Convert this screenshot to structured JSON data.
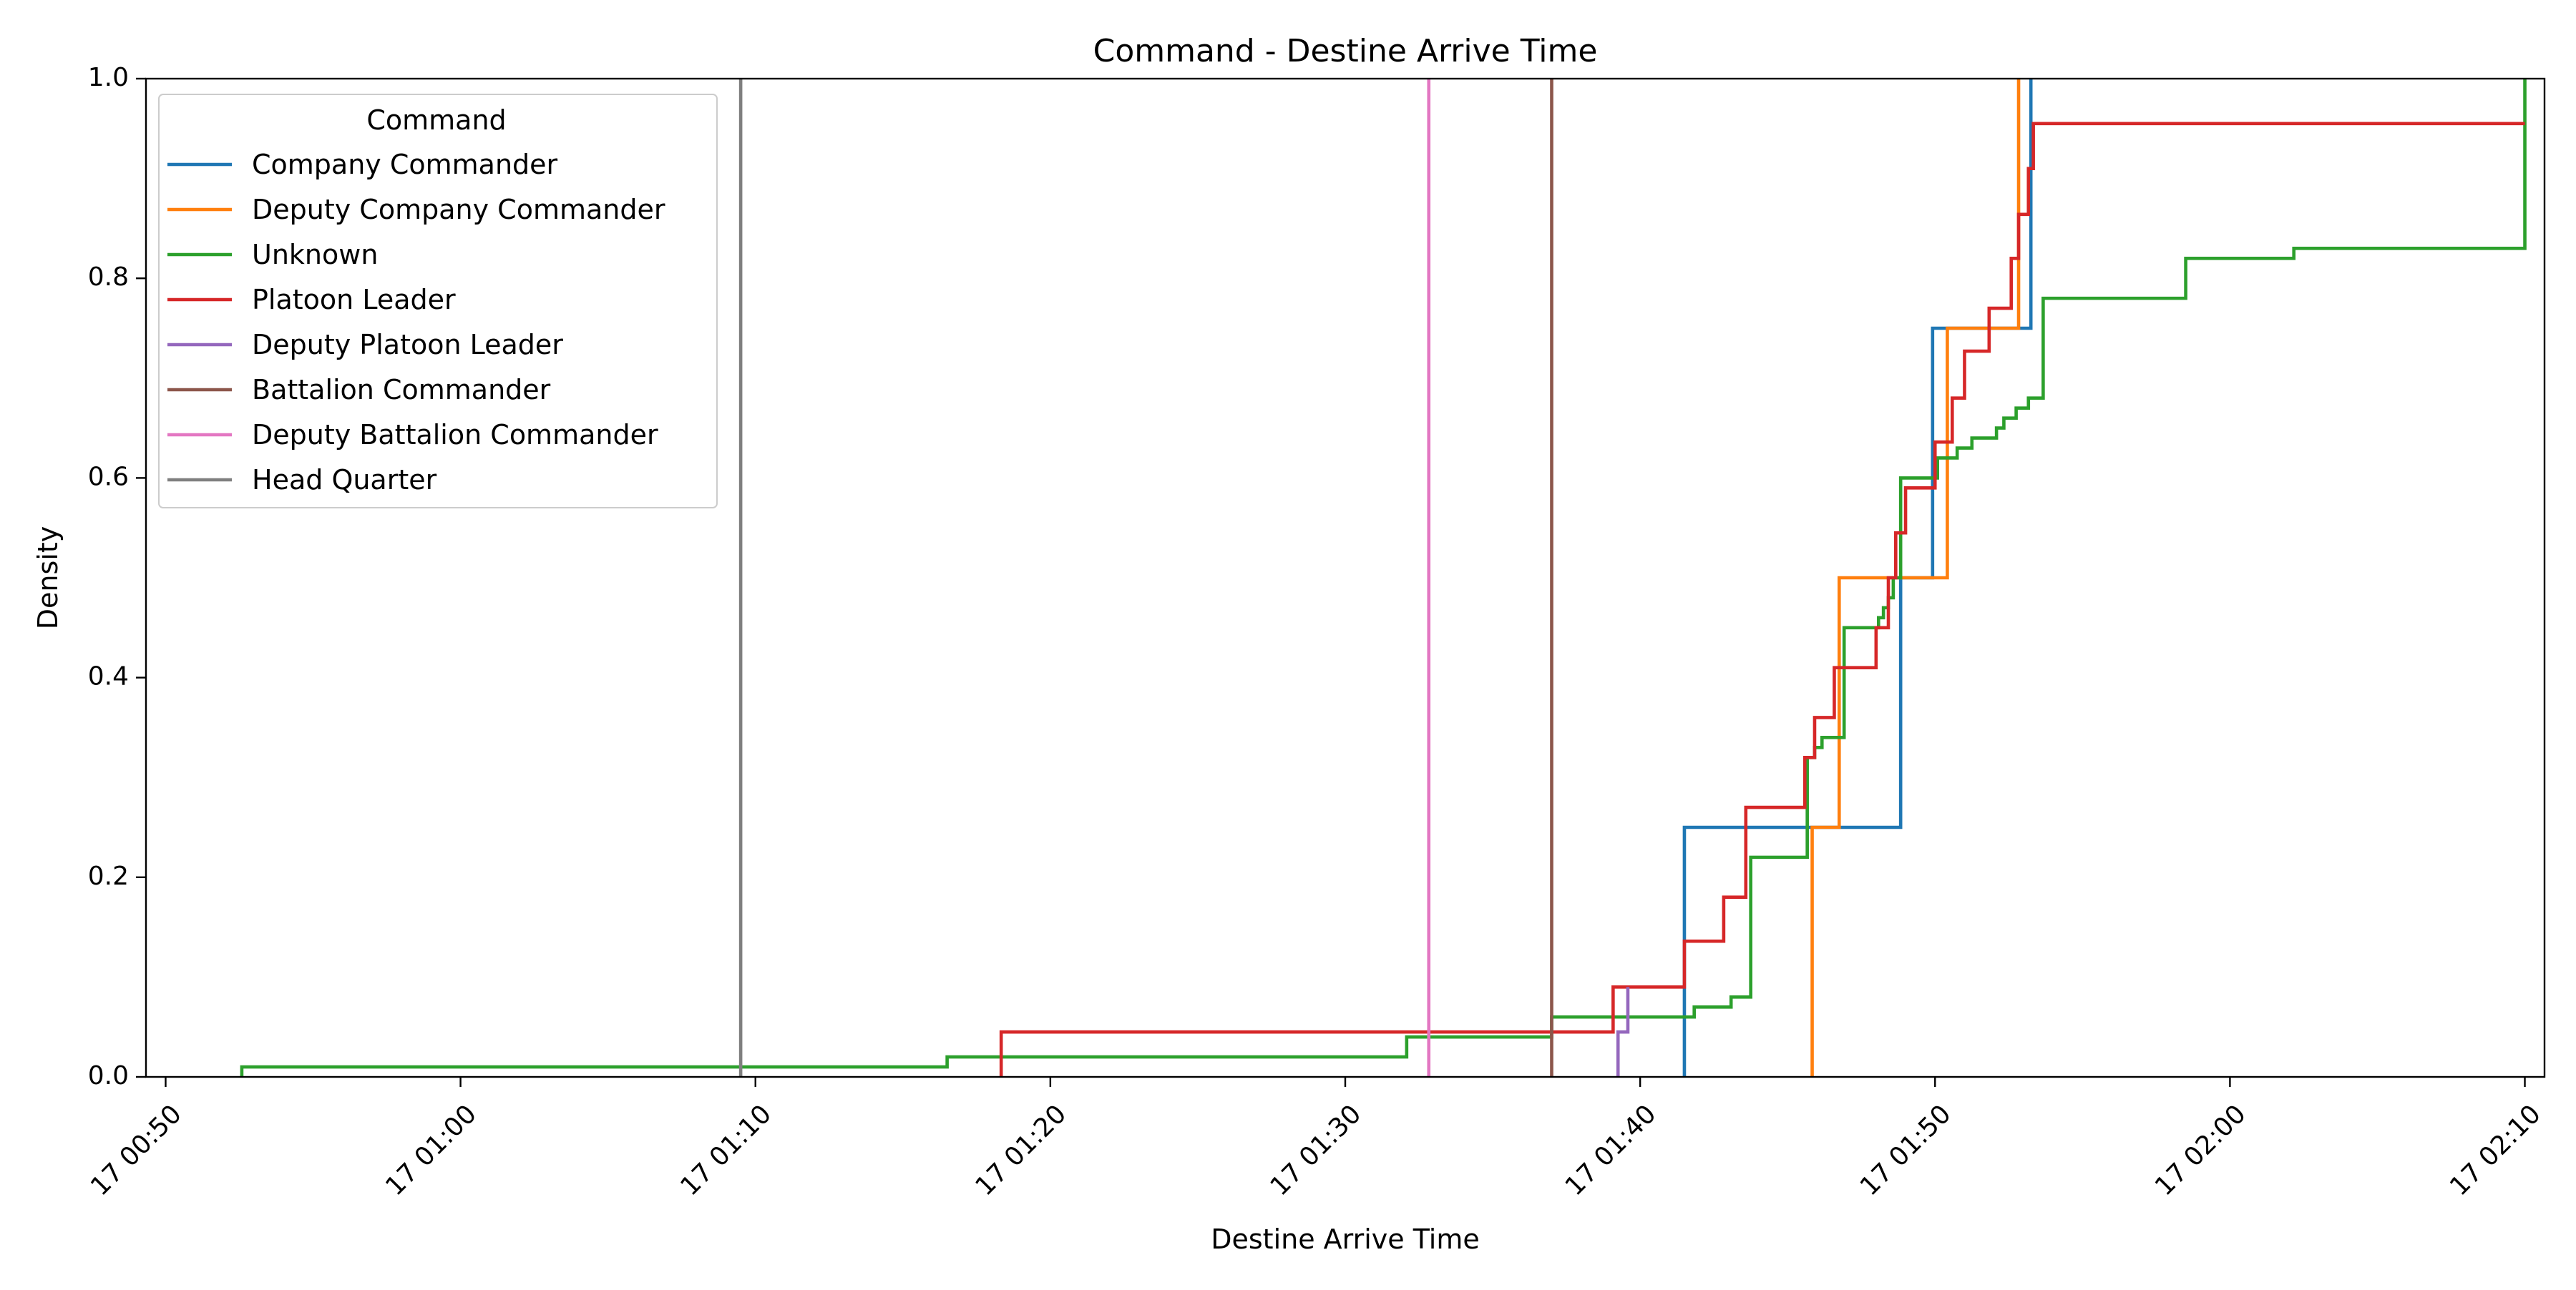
{
  "chart_data": {
    "type": "line",
    "subtype": "ecdf-step",
    "title": "Command - Destine Arrive Time",
    "xlabel": "Destine Arrive Time",
    "ylabel": "Density",
    "x_domain": [
      "2000-01-17 00:49:20",
      "2000-01-17 02:10:40"
    ],
    "ylim": [
      0,
      1.0
    ],
    "x_ticks": [
      {
        "t": "2000-01-17 00:50:00",
        "label": "17 00:50"
      },
      {
        "t": "2000-01-17 01:00:00",
        "label": "17 01:00"
      },
      {
        "t": "2000-01-17 01:10:00",
        "label": "17 01:10"
      },
      {
        "t": "2000-01-17 01:20:00",
        "label": "17 01:20"
      },
      {
        "t": "2000-01-17 01:30:00",
        "label": "17 01:30"
      },
      {
        "t": "2000-01-17 01:40:00",
        "label": "17 01:40"
      },
      {
        "t": "2000-01-17 01:50:00",
        "label": "17 01:50"
      },
      {
        "t": "2000-01-17 02:00:00",
        "label": "17 02:00"
      },
      {
        "t": "2000-01-17 02:10:00",
        "label": "17 02:10"
      }
    ],
    "y_ticks": [
      {
        "v": 0.0,
        "label": "0.0"
      },
      {
        "v": 0.2,
        "label": "0.2"
      },
      {
        "v": 0.4,
        "label": "0.4"
      },
      {
        "v": 0.6,
        "label": "0.6"
      },
      {
        "v": 0.8,
        "label": "0.8"
      },
      {
        "v": 1.0,
        "label": "1.0"
      }
    ],
    "grid": false,
    "legend": {
      "title": "Command",
      "position": "top-left"
    },
    "series": [
      {
        "name": "Company Commander",
        "color": "#1f77b4",
        "points": [
          [
            "2000-01-17 01:41:30",
            0.25
          ],
          [
            "2000-01-17 01:48:50",
            0.5
          ],
          [
            "2000-01-17 01:49:55",
            0.75
          ],
          [
            "2000-01-17 01:53:15",
            1.0
          ]
        ]
      },
      {
        "name": "Deputy Company Commander",
        "color": "#ff7f0e",
        "points": [
          [
            "2000-01-17 01:45:50",
            0.25
          ],
          [
            "2000-01-17 01:46:45",
            0.5
          ],
          [
            "2000-01-17 01:50:25",
            0.75
          ],
          [
            "2000-01-17 01:52:50",
            1.0
          ]
        ]
      },
      {
        "name": "Unknown",
        "color": "#2ca02c",
        "points": [
          [
            "2000-01-17 00:52:35",
            0.01
          ],
          [
            "2000-01-17 01:16:30",
            0.02
          ],
          [
            "2000-01-17 01:32:05",
            0.04
          ],
          [
            "2000-01-17 01:37:00",
            0.06
          ],
          [
            "2000-01-17 01:41:50",
            0.07
          ],
          [
            "2000-01-17 01:43:05",
            0.08
          ],
          [
            "2000-01-17 01:43:45",
            0.22
          ],
          [
            "2000-01-17 01:45:40",
            0.32
          ],
          [
            "2000-01-17 01:45:55",
            0.33
          ],
          [
            "2000-01-17 01:46:10",
            0.34
          ],
          [
            "2000-01-17 01:46:55",
            0.45
          ],
          [
            "2000-01-17 01:48:05",
            0.46
          ],
          [
            "2000-01-17 01:48:15",
            0.47
          ],
          [
            "2000-01-17 01:48:25",
            0.48
          ],
          [
            "2000-01-17 01:48:35",
            0.5
          ],
          [
            "2000-01-17 01:48:50",
            0.6
          ],
          [
            "2000-01-17 01:50:05",
            0.62
          ],
          [
            "2000-01-17 01:50:45",
            0.63
          ],
          [
            "2000-01-17 01:51:15",
            0.64
          ],
          [
            "2000-01-17 01:52:05",
            0.65
          ],
          [
            "2000-01-17 01:52:20",
            0.66
          ],
          [
            "2000-01-17 01:52:45",
            0.67
          ],
          [
            "2000-01-17 01:53:10",
            0.68
          ],
          [
            "2000-01-17 01:53:40",
            0.78
          ],
          [
            "2000-01-17 01:58:30",
            0.82
          ],
          [
            "2000-01-17 02:02:10",
            0.83
          ],
          [
            "2000-01-17 02:10:00",
            1.0
          ]
        ]
      },
      {
        "name": "Platoon Leader",
        "color": "#d62728",
        "points": [
          [
            "2000-01-17 01:18:20",
            0.045
          ],
          [
            "2000-01-17 01:39:05",
            0.09
          ],
          [
            "2000-01-17 01:41:30",
            0.136
          ],
          [
            "2000-01-17 01:42:50",
            0.18
          ],
          [
            "2000-01-17 01:43:35",
            0.27
          ],
          [
            "2000-01-17 01:45:35",
            0.32
          ],
          [
            "2000-01-17 01:45:55",
            0.36
          ],
          [
            "2000-01-17 01:46:35",
            0.41
          ],
          [
            "2000-01-17 01:48:00",
            0.45
          ],
          [
            "2000-01-17 01:48:25",
            0.5
          ],
          [
            "2000-01-17 01:48:40",
            0.545
          ],
          [
            "2000-01-17 01:49:00",
            0.59
          ],
          [
            "2000-01-17 01:50:00",
            0.636
          ],
          [
            "2000-01-17 01:50:35",
            0.68
          ],
          [
            "2000-01-17 01:51:00",
            0.727
          ],
          [
            "2000-01-17 01:51:50",
            0.77
          ],
          [
            "2000-01-17 01:52:35",
            0.82
          ],
          [
            "2000-01-17 01:52:50",
            0.864
          ],
          [
            "2000-01-17 01:53:10",
            0.91
          ],
          [
            "2000-01-17 01:53:20",
            0.955
          ]
        ],
        "end": "2000-01-17 02:10:00"
      },
      {
        "name": "Deputy Platoon Leader",
        "color": "#9467bd",
        "points": [
          [
            "2000-01-17 01:39:15",
            0.045
          ],
          [
            "2000-01-17 01:39:35",
            0.09
          ]
        ]
      },
      {
        "name": "Battalion Commander",
        "color": "#8c564b",
        "vline": "2000-01-17 01:37:00"
      },
      {
        "name": "Deputy Battalion Commander",
        "color": "#e377c2",
        "vline": "2000-01-17 01:32:50"
      },
      {
        "name": "Head Quarter",
        "color": "#7f7f7f",
        "vline": "2000-01-17 01:09:30"
      }
    ]
  }
}
